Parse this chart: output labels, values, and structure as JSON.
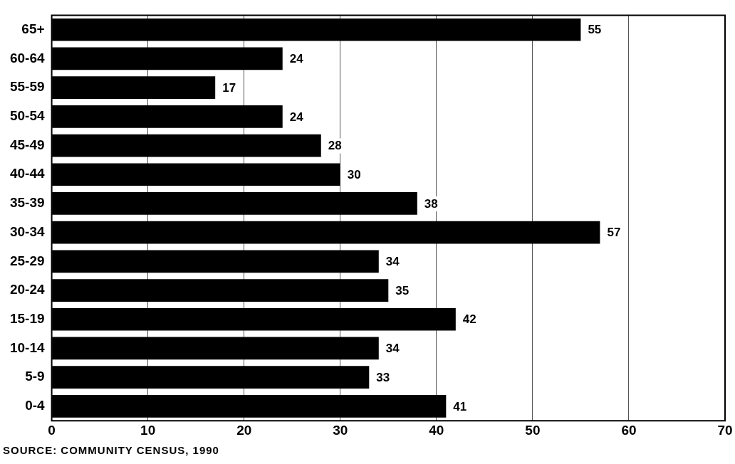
{
  "chart_data": {
    "type": "bar",
    "orientation": "horizontal",
    "categories": [
      "65+",
      "60-64",
      "55-59",
      "50-54",
      "45-49",
      "40-44",
      "35-39",
      "30-34",
      "25-29",
      "20-24",
      "15-19",
      "10-14",
      "5-9",
      "0-4"
    ],
    "values": [
      55,
      24,
      17,
      24,
      28,
      30,
      38,
      57,
      34,
      35,
      42,
      34,
      33,
      41
    ],
    "color": "#000000",
    "xlim": [
      0,
      70
    ],
    "xticks": [
      0,
      10,
      20,
      30,
      40,
      50,
      60,
      70
    ],
    "grid": "x",
    "data_labels": true,
    "annotations": [
      "SOURCE:  COMMUNITY CENSUS, 1990"
    ]
  }
}
